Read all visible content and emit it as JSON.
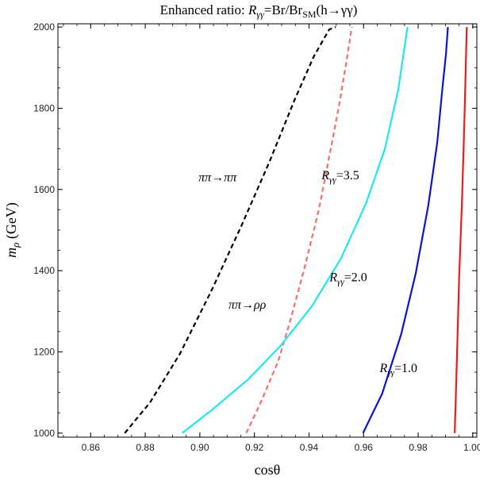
{
  "chart_data": {
    "type": "line",
    "title": {
      "prefix": "Enhanced ratio: ",
      "sym": "R",
      "sub": "γγ",
      "mid": "=Br/Br",
      "sub2": "SM",
      "suffix": "(h→γγ)"
    },
    "xlabel": "cosθ",
    "ylabel": {
      "sym": "m",
      "sub": "ρ",
      "rest": " (GeV)"
    },
    "xlim": [
      0.848,
      1.0015
    ],
    "ylim": [
      990,
      2008
    ],
    "x_ticks": [
      0.86,
      0.88,
      0.9,
      0.92,
      0.94,
      0.96,
      0.98,
      1.0
    ],
    "x_tick_labels": [
      "0.86",
      "0.88",
      "0.90",
      "0.92",
      "0.94",
      "0.96",
      "0.98",
      "1.00"
    ],
    "y_ticks": [
      1000,
      1200,
      1400,
      1600,
      1800,
      2000
    ],
    "y_tick_labels": [
      "1000",
      "1200",
      "1400",
      "1600",
      "1800",
      "2000"
    ],
    "grid": false,
    "series": [
      {
        "id": "pipi-pipi",
        "color": "#000000",
        "dash": true,
        "x": [
          0.8725,
          0.8817,
          0.8926,
          0.9042,
          0.9152,
          0.9255,
          0.9348,
          0.9418,
          0.9474,
          0.9498
        ],
        "y": [
          1000,
          1075,
          1194,
          1350,
          1510,
          1668,
          1822,
          1928,
          1994,
          2000
        ]
      },
      {
        "id": "pipi-rhorho",
        "color": "#f07070",
        "dash": true,
        "x": [
          0.917,
          0.9223,
          0.9287,
          0.9334,
          0.9384,
          0.9436,
          0.9478,
          0.9511,
          0.9536,
          0.9557
        ],
        "y": [
          1000,
          1075,
          1177,
          1283,
          1408,
          1550,
          1694,
          1810,
          1910,
          2000
        ]
      },
      {
        "id": "r-3.5",
        "color": "#1ee6f2",
        "dash": false,
        "x": [
          0.8935,
          0.9044,
          0.9175,
          0.9297,
          0.941,
          0.9517,
          0.9609,
          0.9678,
          0.9727,
          0.9761
        ],
        "y": [
          1000,
          1057,
          1131,
          1216,
          1312,
          1430,
          1566,
          1700,
          1846,
          2000
        ]
      },
      {
        "id": "r-2.0",
        "color": "#0a16c9",
        "dash": false,
        "x": [
          0.9598,
          0.9668,
          0.9738,
          0.9791,
          0.9837,
          0.987,
          0.9889,
          0.9902,
          0.9909
        ],
        "y": [
          1000,
          1097,
          1244,
          1393,
          1560,
          1716,
          1850,
          1934,
          2000
        ]
      },
      {
        "id": "r-1.0",
        "color": "#ee1a1a",
        "dash": false,
        "x": [
          0.9934,
          0.9941,
          0.995,
          0.9961,
          0.9969,
          0.9974,
          0.9978
        ],
        "y": [
          1000,
          1160,
          1380,
          1580,
          1760,
          1890,
          2000
        ]
      }
    ],
    "annotations": [
      {
        "id": "pipi-pipi",
        "text": "ππ→ππ",
        "kind": "plain",
        "x": 0.8995,
        "y": 1620
      },
      {
        "id": "pipi-rhorho",
        "text": "ππ→ρρ",
        "kind": "plain",
        "x": 0.9105,
        "y": 1307
      },
      {
        "id": "r35",
        "kind": "ratio",
        "sym": "R",
        "sub": "γγ",
        "val": "=3.5",
        "x": 0.9446,
        "y": 1625
      },
      {
        "id": "r20",
        "kind": "ratio",
        "sym": "R",
        "sub": "γγ",
        "val": "=2.0",
        "x": 0.9475,
        "y": 1374
      },
      {
        "id": "r10",
        "kind": "ratio",
        "sym": "R",
        "sub": "γγ",
        "val": "=1.0",
        "x": 0.9659,
        "y": 1150
      }
    ]
  }
}
